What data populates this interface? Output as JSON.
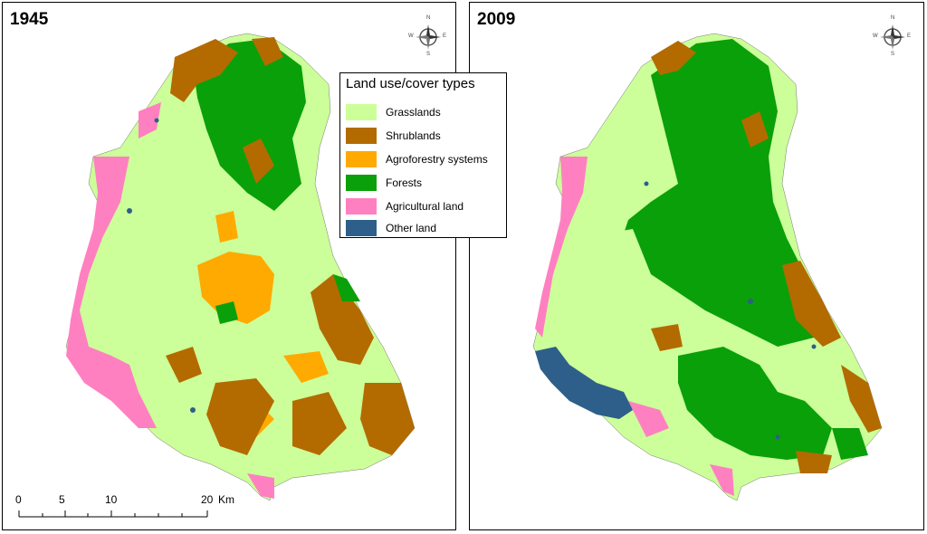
{
  "maps": [
    {
      "year": "1945"
    },
    {
      "year": "2009"
    }
  ],
  "compass": {
    "n": "N",
    "s": "S",
    "e": "E",
    "w": "W"
  },
  "legend": {
    "title": "Land use/cover types",
    "items": [
      {
        "label": "Grasslands",
        "color": "#ccff99"
      },
      {
        "label": "Shrublands",
        "color": "#b36b00"
      },
      {
        "label": "Agroforestry systems",
        "color": "#ffaa00"
      },
      {
        "label": "Forests",
        "color": "#0aa00a"
      },
      {
        "label": "Agricultural land",
        "color": "#ff80c0"
      },
      {
        "label": "Other land",
        "color": "#2d5f8a"
      }
    ]
  },
  "scalebar": {
    "ticks": [
      "0",
      "5",
      "10",
      "20"
    ],
    "unit": "Km"
  }
}
